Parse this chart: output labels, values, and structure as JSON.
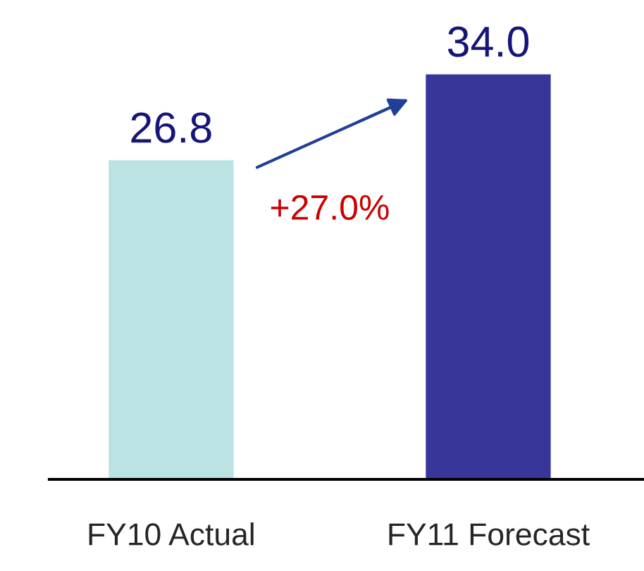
{
  "chart_data": {
    "type": "bar",
    "categories": [
      "FY10 Actual",
      "FY11 Forecast"
    ],
    "values": [
      26.8,
      34.0
    ],
    "colors": [
      "#bce3e3",
      "#383799"
    ],
    "value_labels": [
      "26.8",
      "34.0"
    ],
    "annotations": [
      "+27.0%"
    ]
  }
}
